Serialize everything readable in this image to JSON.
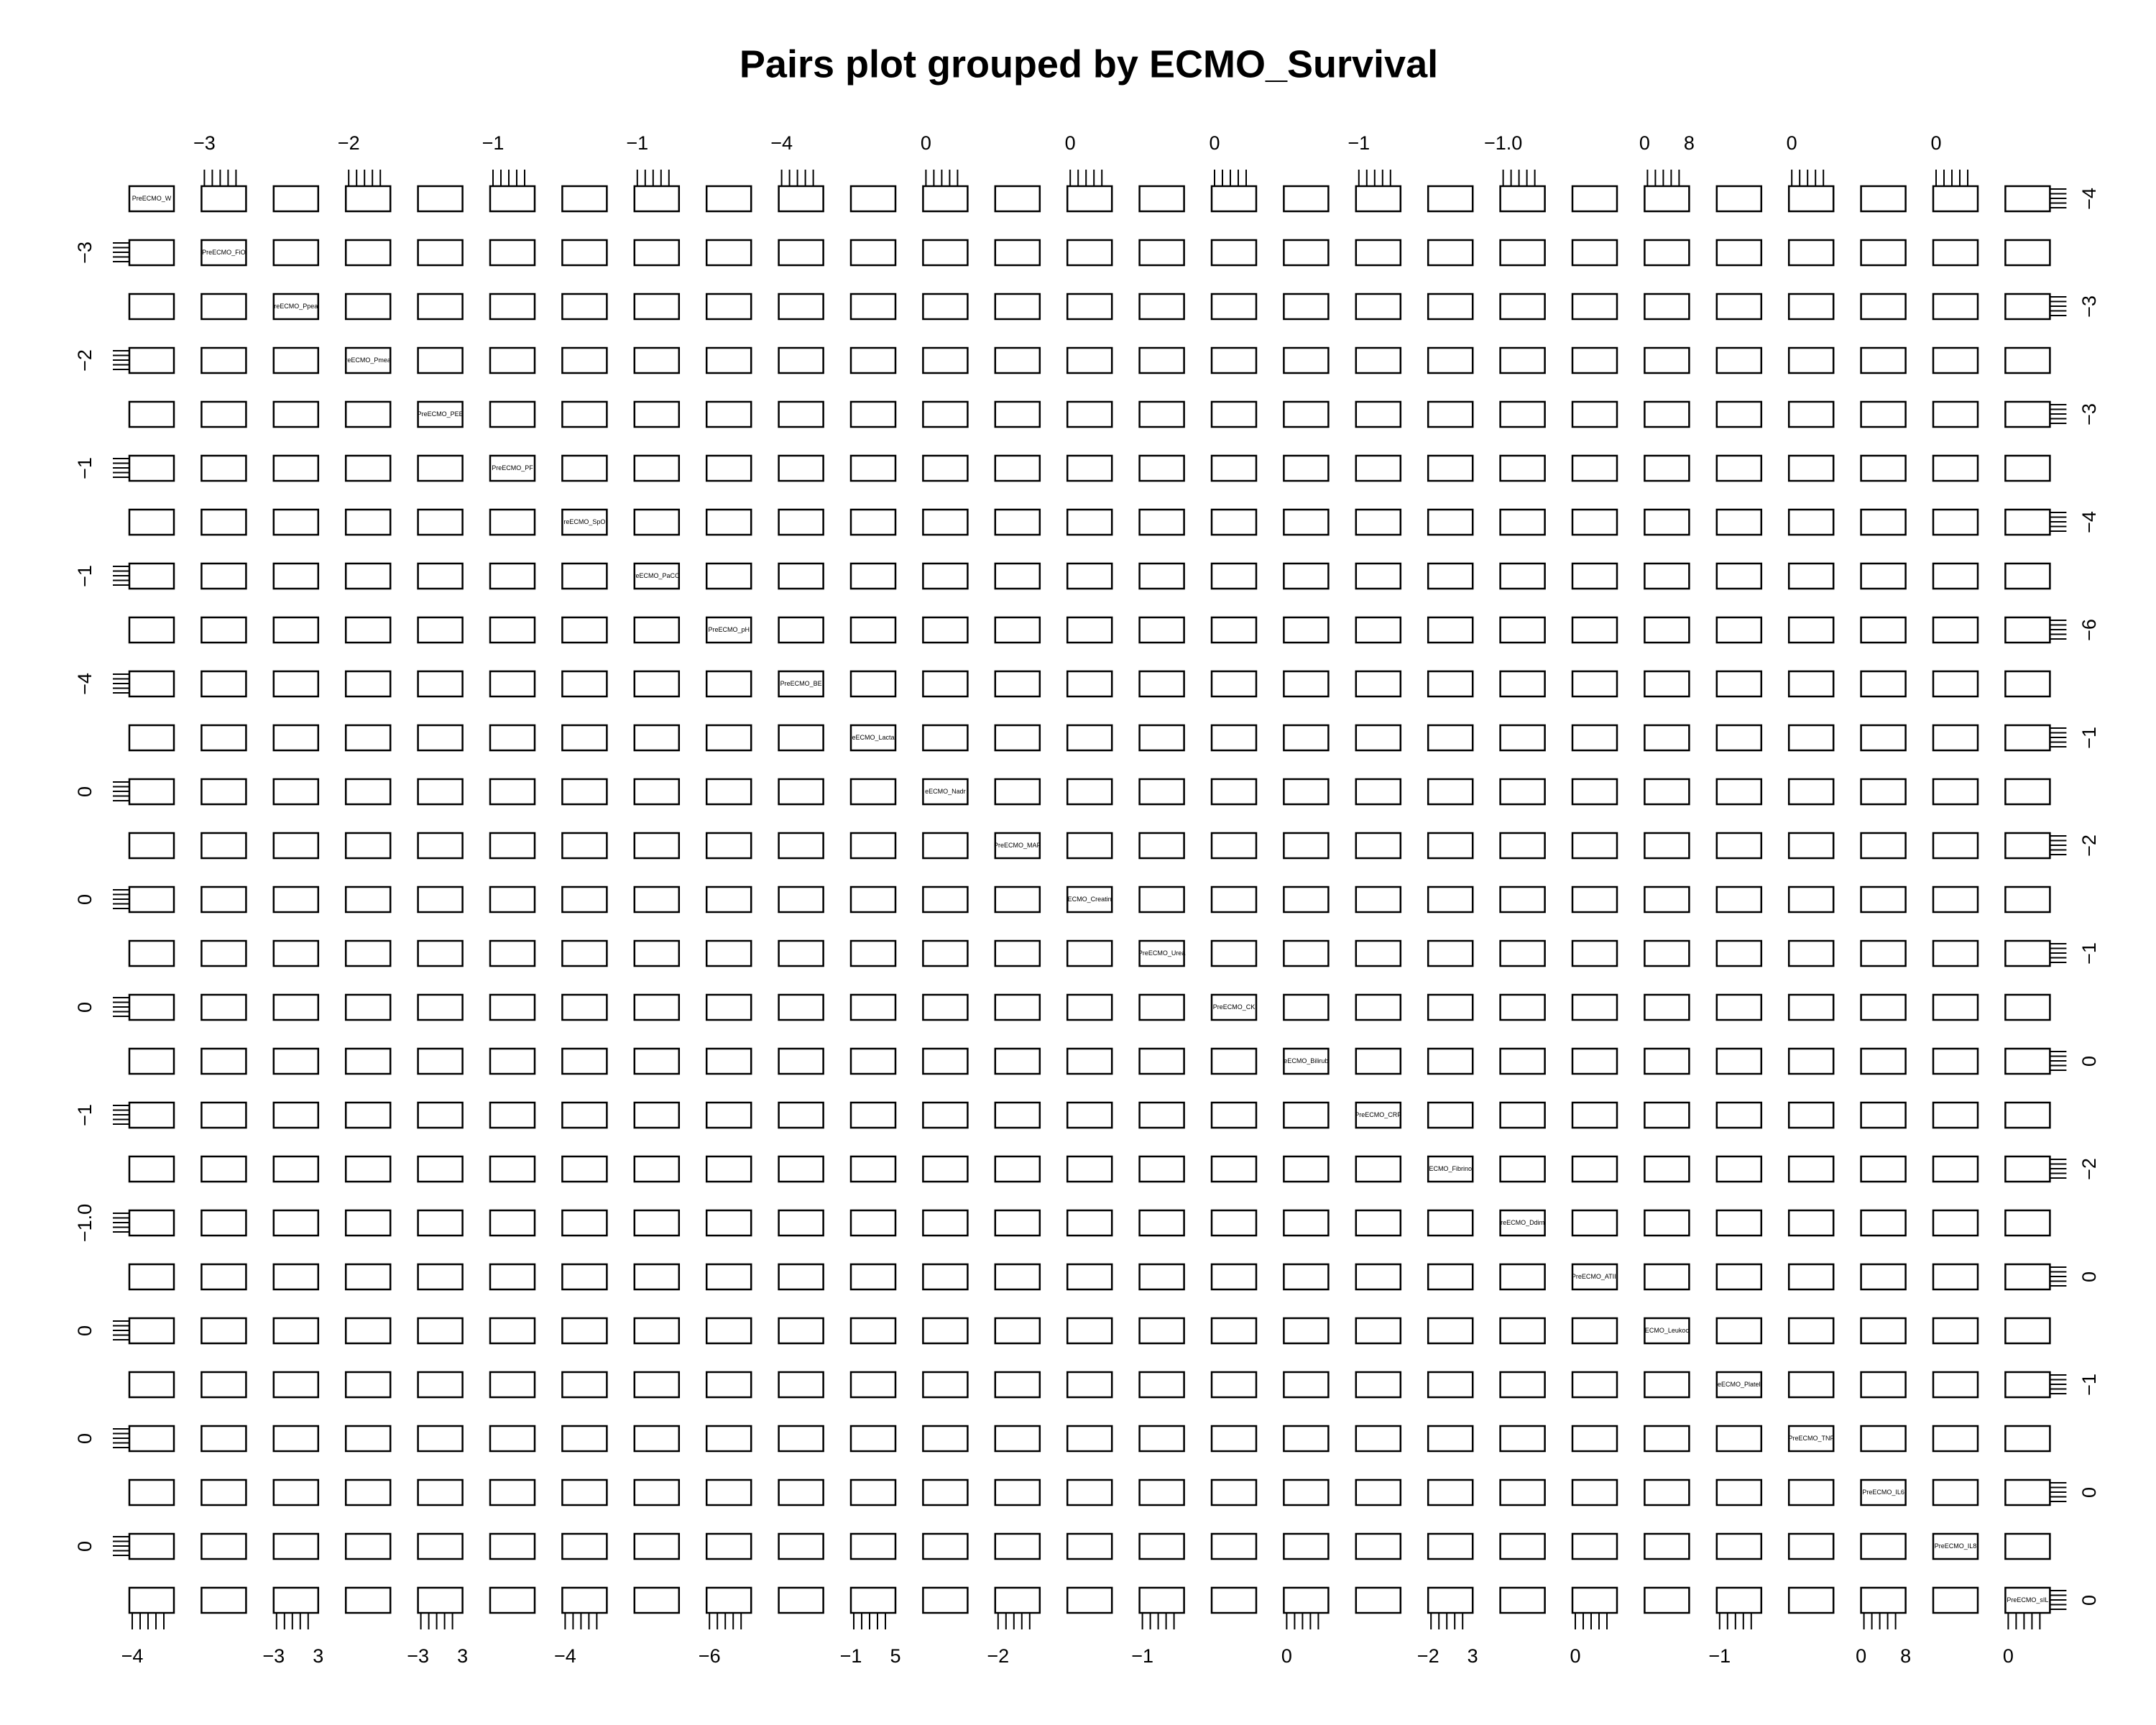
{
  "chart_data": {
    "type": "scatter-matrix",
    "title": "Pairs plot grouped by ECMO_Survival",
    "variables": [
      "PreECMO_W",
      "PreECMO_FiO",
      "reECMO_Ppea",
      "reECMO_Pmea",
      "PreECMO_PEE",
      "PreECMO_PF",
      "reECMO_SpO",
      "reECMO_PaCO",
      "PreECMO_pH",
      "PreECMO_BE",
      "eECMO_Lacta",
      "eECMO_Nadr",
      "PreECMO_MAP",
      "ECMO_Creatin",
      "PreECMO_Urea",
      "PreECMO_CK",
      "eECMO_Bilirub",
      "PreECMO_CRP",
      "ECMO_Fibrino",
      "reECMO_Ddim",
      "PreECMO_ATIII",
      "ECMO_Leukoc",
      "eECMO_Platel",
      "PreECMO_TNF",
      "PreECMO_IL6",
      "PreECMO_IL8",
      "PreECMO_sIL"
    ],
    "top_tick_labels": [
      null,
      [
        "−3"
      ],
      null,
      [
        "−2"
      ],
      null,
      [
        "−1"
      ],
      null,
      [
        "−1"
      ],
      null,
      [
        "−4"
      ],
      null,
      [
        "0"
      ],
      null,
      [
        "0"
      ],
      null,
      [
        "0"
      ],
      null,
      [
        "−1"
      ],
      null,
      [
        "−1.0"
      ],
      null,
      [
        "0",
        "8"
      ],
      null,
      [
        "0"
      ],
      null,
      [
        "0"
      ],
      null
    ],
    "bottom_tick_labels": [
      [
        "−4"
      ],
      null,
      [
        "−3",
        "3"
      ],
      null,
      [
        "−3",
        "3"
      ],
      null,
      [
        "−4"
      ],
      null,
      [
        "−6"
      ],
      null,
      [
        "−1",
        "5"
      ],
      null,
      [
        "−2"
      ],
      null,
      [
        "−1"
      ],
      null,
      [
        "0"
      ],
      null,
      [
        "−2",
        "3"
      ],
      null,
      [
        "0"
      ],
      null,
      [
        "−1"
      ],
      null,
      [
        "0",
        "8"
      ],
      null,
      [
        "0"
      ]
    ],
    "left_tick_labels": [
      null,
      "−3",
      null,
      "−2",
      null,
      "−1",
      null,
      "−1",
      null,
      "−4",
      null,
      "0",
      null,
      "0",
      null,
      "0",
      null,
      "−1",
      null,
      "−1.0",
      null,
      "0",
      null,
      "0",
      null,
      "0",
      null
    ],
    "right_tick_labels": [
      "−4",
      null,
      "−3",
      null,
      "−3",
      null,
      "−4",
      null,
      "−6",
      null,
      "−1",
      null,
      "−2",
      null,
      "−1",
      null,
      "0",
      null,
      "−2",
      null,
      "0",
      null,
      "−1",
      null,
      "0",
      null,
      "0"
    ]
  }
}
